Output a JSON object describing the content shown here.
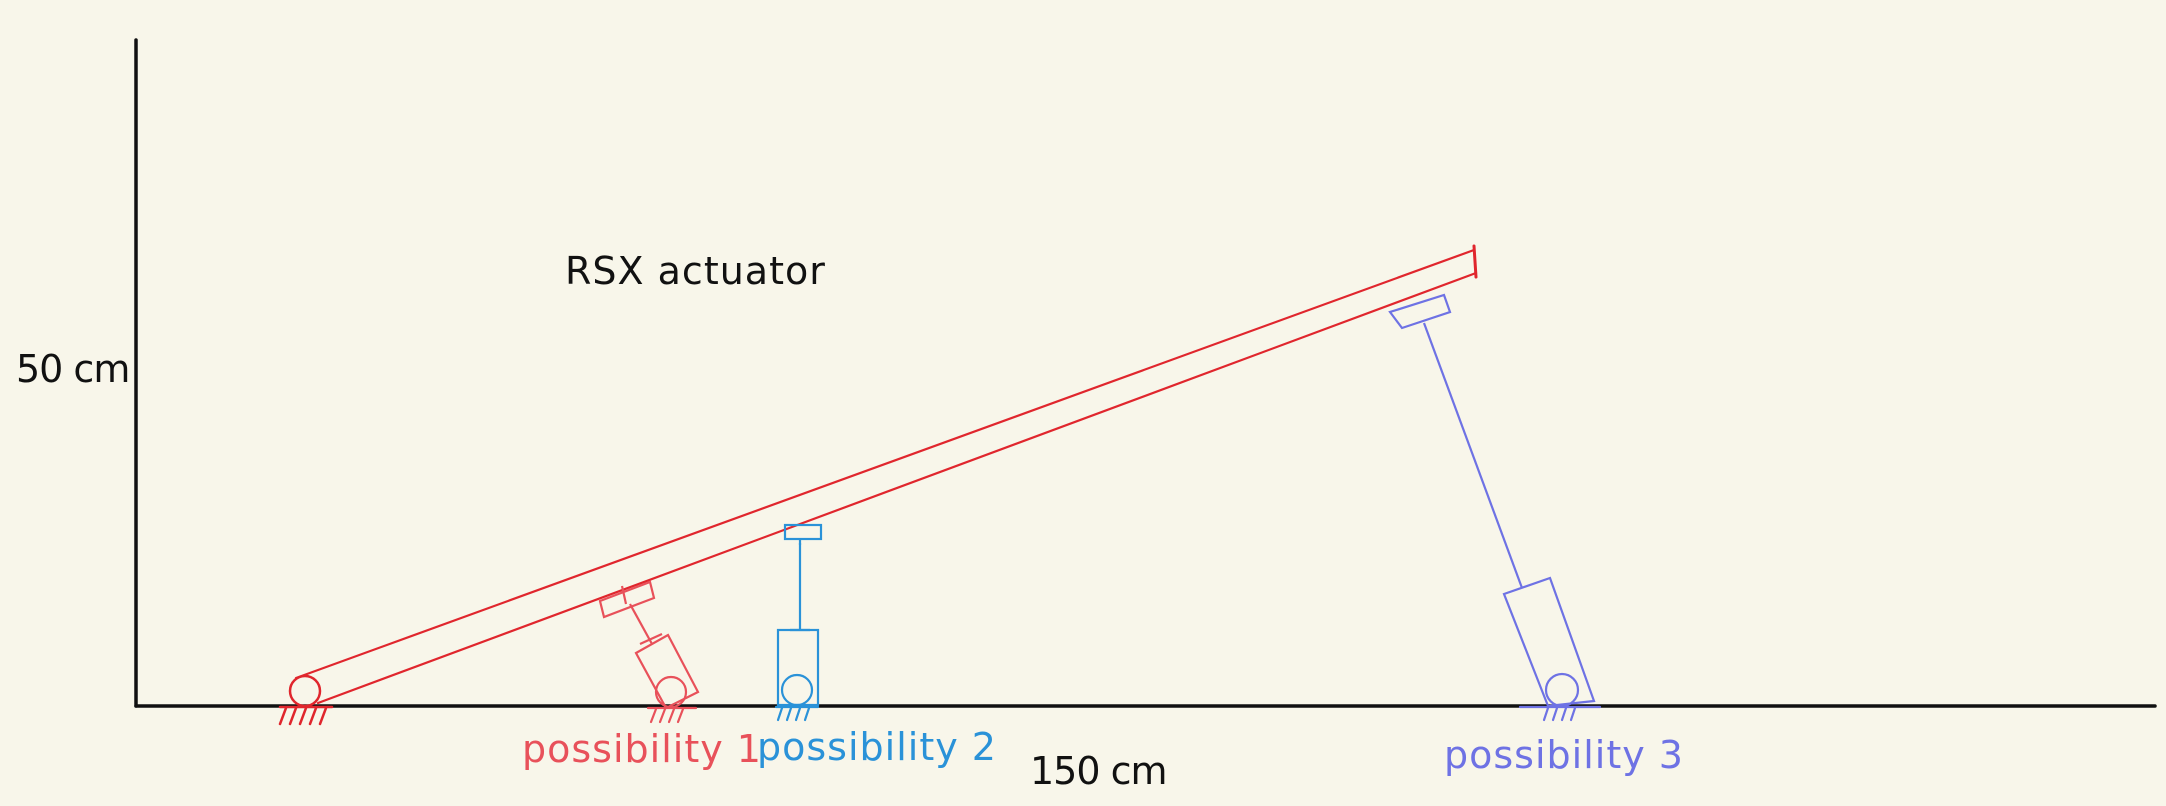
{
  "title": "RSX actuator",
  "y_axis_label": "50 cm",
  "x_axis_label": "150 cm",
  "possibilities": [
    {
      "label": "possibility 1",
      "color": "#e8515a"
    },
    {
      "label": "possibility 2",
      "color": "#2a92d8"
    },
    {
      "label": "possibility 3",
      "color": "#6e72e4"
    }
  ],
  "colors": {
    "background": "#f8f6ea",
    "axes": "#111111",
    "beam": "#e0262d"
  }
}
